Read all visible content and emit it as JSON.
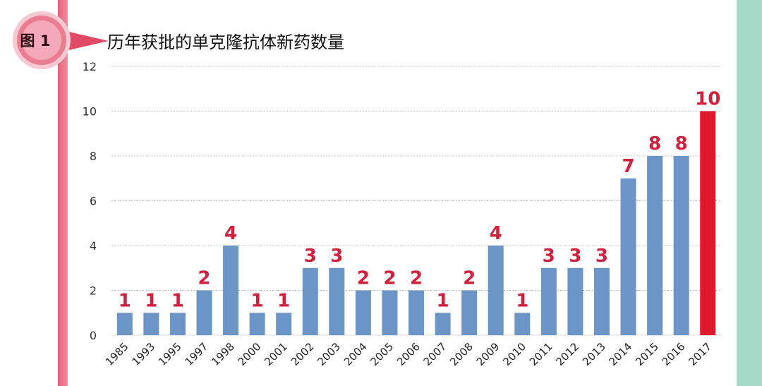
{
  "figure_label": "图 1",
  "chart_data": {
    "type": "bar",
    "title": "历年获批的单克隆抗体新药数量",
    "xlabel": "",
    "ylabel": "",
    "ylim": [
      0,
      12
    ],
    "yticks": [
      0,
      2,
      4,
      6,
      8,
      10,
      12
    ],
    "grid": true,
    "categories": [
      "1985",
      "1993",
      "1995",
      "1997",
      "1998",
      "2000",
      "2001",
      "2002",
      "2003",
      "2004",
      "2005",
      "2006",
      "2007",
      "2008",
      "2009",
      "2010",
      "2011",
      "2012",
      "2013",
      "2014",
      "2015",
      "2016",
      "2017"
    ],
    "values": [
      1,
      1,
      1,
      2,
      4,
      1,
      1,
      3,
      3,
      2,
      2,
      2,
      1,
      2,
      4,
      1,
      3,
      3,
      3,
      7,
      8,
      8,
      10
    ],
    "highlight_category": "2017",
    "colors": {
      "bar": "#6b95c7",
      "highlight_bar": "#e0182d",
      "data_label": "#d11f3c",
      "grid": "#bfbfbf",
      "tick_text": "#333333"
    }
  }
}
